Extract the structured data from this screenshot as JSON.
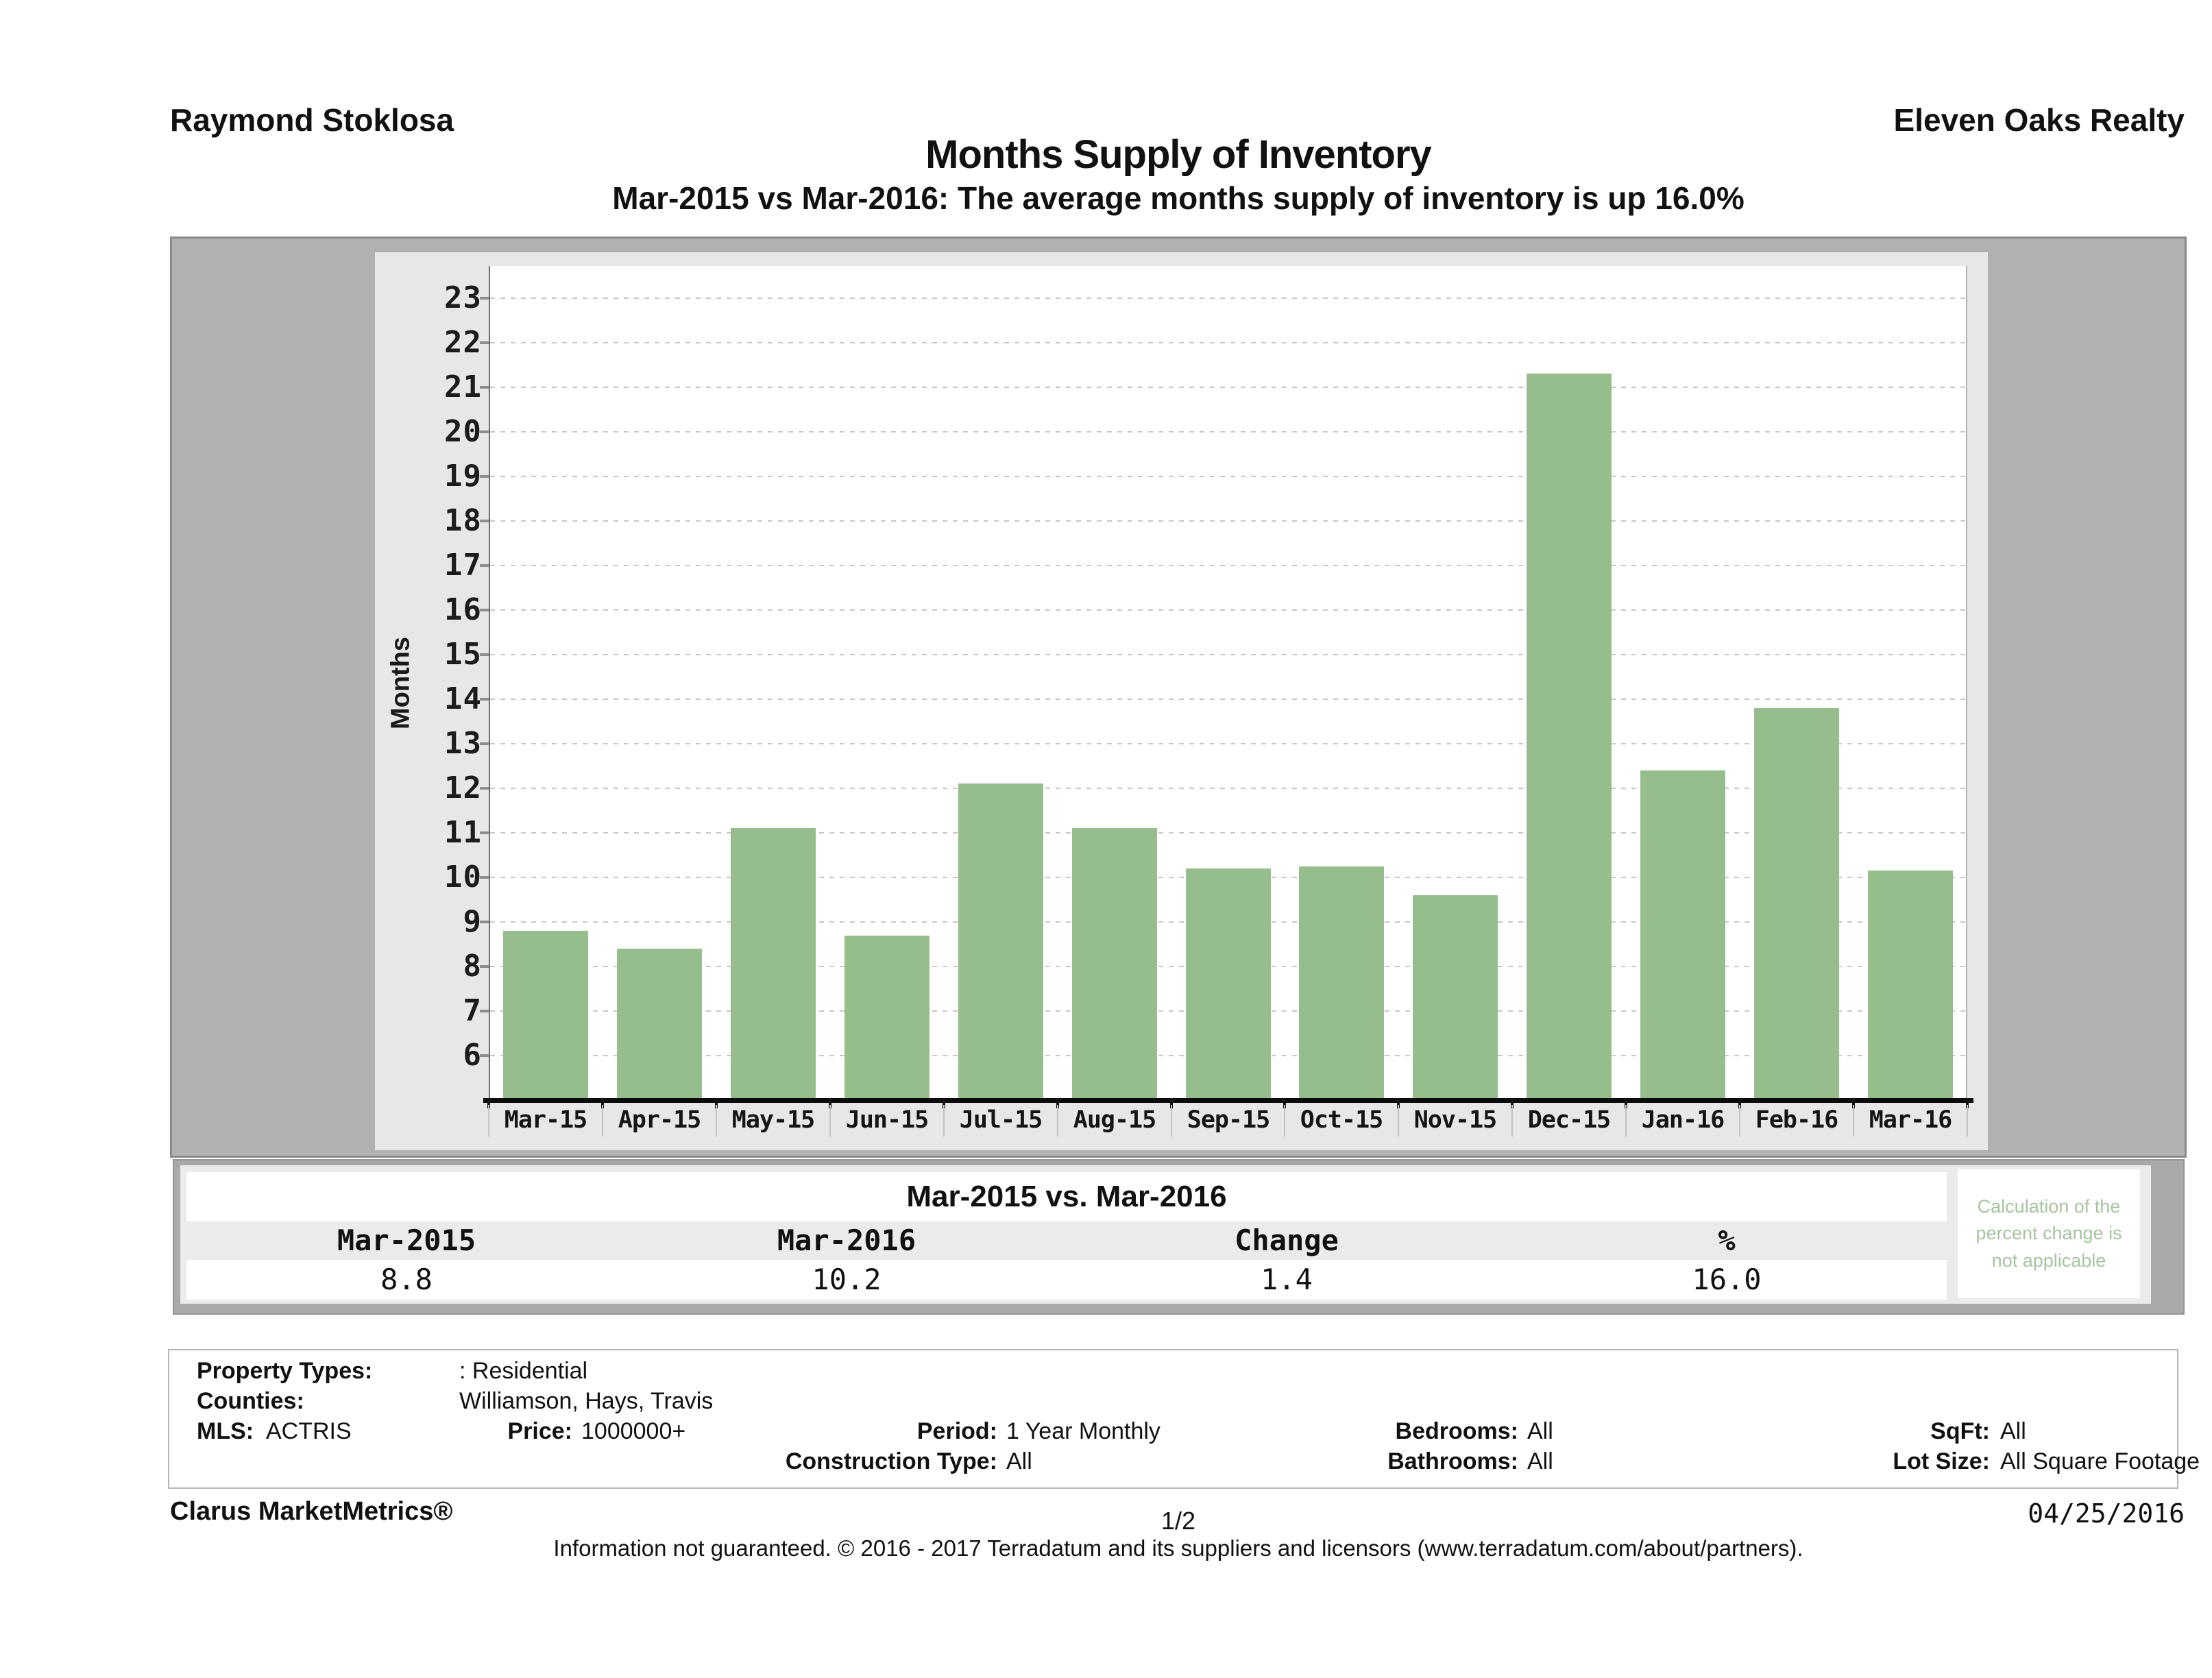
{
  "header": {
    "agent": "Raymond Stoklosa",
    "company": "Eleven Oaks Realty"
  },
  "title": "Months Supply of Inventory",
  "subtitle": "Mar-2015 vs Mar-2016: The average months supply of inventory is up 16.0%",
  "chart_data": {
    "type": "bar",
    "title": "Months Supply of Inventory",
    "xlabel": "",
    "ylabel": "Months",
    "categories": [
      "Mar-15",
      "Apr-15",
      "May-15",
      "Jun-15",
      "Jul-15",
      "Aug-15",
      "Sep-15",
      "Oct-15",
      "Nov-15",
      "Dec-15",
      "Jan-16",
      "Feb-16",
      "Mar-16"
    ],
    "values": [
      8.8,
      8.4,
      11.1,
      8.7,
      12.1,
      11.1,
      10.2,
      10.25,
      9.6,
      21.3,
      12.4,
      13.8,
      10.15
    ],
    "yticks": [
      6,
      7,
      8,
      9,
      10,
      11,
      12,
      13,
      14,
      15,
      16,
      17,
      18,
      19,
      20,
      21,
      22,
      23
    ],
    "ylim": [
      5,
      23.7
    ],
    "grid": true,
    "legend_position": "none",
    "bar_color": "#96be8c"
  },
  "comparison_table": {
    "title": "Mar-2015 vs. Mar-2016",
    "columns": [
      "Mar-2015",
      "Mar-2016",
      "Change",
      "%"
    ],
    "values": [
      "8.8",
      "10.2",
      "1.4",
      "16.0"
    ],
    "note": "Calculation of the percent change is not applicable"
  },
  "criteria": {
    "property_types_label": "Property Types:",
    "property_types": ": Residential",
    "counties_label": "Counties:",
    "counties": "Williamson, Hays, Travis",
    "mls_label": "MLS:",
    "mls": "ACTRIS",
    "price_label": "Price:",
    "price": "1000000+",
    "period_label": "Period:",
    "period": "1 Year Monthly",
    "construction_label": "Construction Type:",
    "construction": "All",
    "bedrooms_label": "Bedrooms:",
    "bedrooms": "All",
    "bathrooms_label": "Bathrooms:",
    "bathrooms": "All",
    "sqft_label": "SqFt:",
    "sqft": "All",
    "lot_label": "Lot Size:",
    "lot": "All Square Footage"
  },
  "footer": {
    "brand": "Clarus MarketMetrics®",
    "page": "1/2",
    "date": "04/25/2016",
    "disclaimer": "Information not guaranteed. © 2016 - 2017 Terradatum and its suppliers and licensors (www.terradatum.com/about/partners)."
  }
}
